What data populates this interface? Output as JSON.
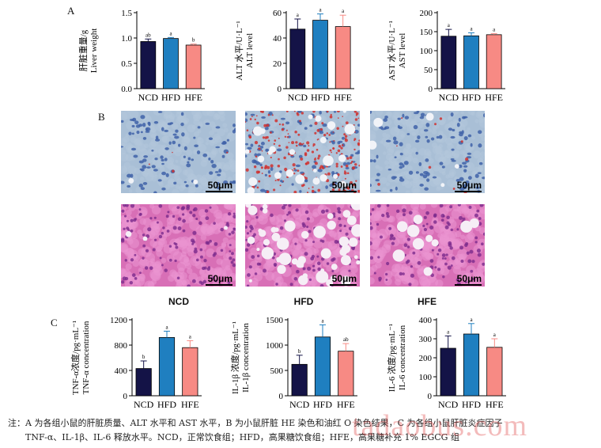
{
  "panel_labels": {
    "a": "A",
    "b": "B",
    "c": "C"
  },
  "colors": {
    "NCD": "#141347",
    "HFD": "#1f7fc0",
    "HFE": "#f78a84"
  },
  "chart_data": [
    {
      "type": "bar",
      "id": "liver",
      "ylabel_cn": "肝脏重量/g",
      "ylabel_en": "Liver weight",
      "categories": [
        "NCD",
        "HFD",
        "HFE"
      ],
      "values": [
        0.93,
        0.99,
        0.86
      ],
      "errors": [
        0.05,
        0.02,
        0.02
      ],
      "letters": [
        "ab",
        "a",
        "b"
      ],
      "ylim": [
        0,
        1.5
      ],
      "ticks": [
        "0.0",
        "0.5",
        "1.0",
        "1.5"
      ]
    },
    {
      "type": "bar",
      "id": "alt",
      "ylabel_cn": "ALT 水平/U·L⁻¹",
      "ylabel_en": "ALT level",
      "categories": [
        "NCD",
        "HFD",
        "HFE"
      ],
      "values": [
        47,
        54,
        49
      ],
      "errors": [
        8,
        5,
        9
      ],
      "letters": [
        "a",
        "a",
        "a"
      ],
      "ylim": [
        0,
        60
      ],
      "ticks": [
        "0",
        "20",
        "40",
        "60"
      ]
    },
    {
      "type": "bar",
      "id": "ast",
      "ylabel_cn": "AST 水平/U·L⁻¹",
      "ylabel_en": "AST level",
      "categories": [
        "NCD",
        "HFD",
        "HFE"
      ],
      "values": [
        138,
        139,
        142
      ],
      "errors": [
        18,
        8,
        3
      ],
      "letters": [
        "a",
        "a",
        "a"
      ],
      "ylim": [
        0,
        200
      ],
      "ticks": [
        "0",
        "50",
        "100",
        "150",
        "200"
      ]
    },
    {
      "type": "bar",
      "id": "tnf",
      "ylabel_cn": "TNF-α浓度/pg·mL⁻¹",
      "ylabel_en": "TNF-α concentration",
      "categories": [
        "NCD",
        "HFD",
        "HFE"
      ],
      "values": [
        430,
        920,
        760
      ],
      "errors": [
        120,
        100,
        110
      ],
      "letters": [
        "b",
        "a",
        "a"
      ],
      "ylim": [
        0,
        1200
      ],
      "ticks": [
        "0",
        "400",
        "800",
        "1200"
      ]
    },
    {
      "type": "bar",
      "id": "il1b",
      "ylabel_cn": "IL-1β 浓度/pg·mL⁻¹",
      "ylabel_en": "IL-1β concentration",
      "categories": [
        "NCD",
        "HFD",
        "HFE"
      ],
      "values": [
        620,
        1160,
        880
      ],
      "errors": [
        180,
        240,
        150
      ],
      "letters": [
        "b",
        "a",
        "ab"
      ],
      "ylim": [
        0,
        1500
      ],
      "ticks": [
        "0",
        "500",
        "1000",
        "1500"
      ]
    },
    {
      "type": "bar",
      "id": "il6",
      "ylabel_cn": "IL-6 浓度/pg·mL⁻¹",
      "ylabel_en": "IL-6 concentration",
      "categories": [
        "NCD",
        "HFD",
        "HFE"
      ],
      "values": [
        250,
        325,
        255
      ],
      "errors": [
        65,
        55,
        45
      ],
      "letters": [
        "a",
        "a",
        "a"
      ],
      "ylim": [
        0,
        400
      ],
      "ticks": [
        "0",
        "100",
        "200",
        "300",
        "400"
      ]
    }
  ],
  "micrographs": {
    "scale_label": "50μm",
    "group_labels": [
      "NCD",
      "HFD",
      "HFE"
    ]
  },
  "caption": {
    "line1": "注：A 为各组小鼠的肝脏质量、ALT 水平和 AST 水平，B 为小鼠肝脏 HE 染色和油红 O 染色结果，C 为各组小鼠肝脏炎症因子",
    "line2": "TNF-α、IL-1β、IL-6 释放水平。NCD，正常饮食组；HFD，高果糖饮食组；HFE，高果糖补充 1% EGCG 组"
  },
  "watermark": "tadaobus.com"
}
